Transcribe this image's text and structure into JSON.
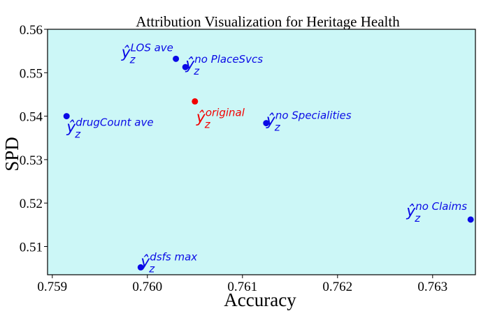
{
  "chart_data": {
    "type": "scatter",
    "title": "Attribution Visualization for Heritage Health",
    "xlabel": "Accuracy",
    "ylabel": "SPD",
    "xlim": [
      0.75895,
      0.76345
    ],
    "ylim": [
      0.5035,
      0.56
    ],
    "xticks": [
      0.759,
      0.76,
      0.761,
      0.762,
      0.763
    ],
    "xtick_labels": [
      "0.759",
      "0.760",
      "0.761",
      "0.762",
      "0.763"
    ],
    "yticks": [
      0.51,
      0.52,
      0.53,
      0.54,
      0.55,
      0.56
    ],
    "ytick_labels": [
      "0.51",
      "0.52",
      "0.53",
      "0.54",
      "0.55",
      "0.56"
    ],
    "grid": false,
    "legend": "none",
    "background_color": "#ccf7f7",
    "points": [
      {
        "label_main": "ŷ",
        "label_sup": "original",
        "label_sub": "z",
        "x": 0.7605,
        "y": 0.5434,
        "color": "#f20000"
      },
      {
        "label_main": "ŷ",
        "label_sup": "LOS ave",
        "label_sub": "z",
        "x": 0.7603,
        "y": 0.5532,
        "color": "#0a0ae6"
      },
      {
        "label_main": "ŷ",
        "label_sup": "no PlaceSvcs",
        "label_sub": "z",
        "x": 0.7604,
        "y": 0.5513,
        "color": "#0a0ae6"
      },
      {
        "label_main": "ŷ",
        "label_sup": "drugCount ave",
        "label_sub": "z",
        "x": 0.75915,
        "y": 0.54,
        "color": "#0a0ae6"
      },
      {
        "label_main": "ŷ",
        "label_sup": "no Specialities",
        "label_sub": "z",
        "x": 0.76125,
        "y": 0.5384,
        "color": "#0a0ae6"
      },
      {
        "label_main": "ŷ",
        "label_sup": "no Claims",
        "label_sub": "z",
        "x": 0.7634,
        "y": 0.5162,
        "color": "#0a0ae6"
      },
      {
        "label_main": "ŷ",
        "label_sup": "dsfs max",
        "label_sub": "z",
        "x": 0.75993,
        "y": 0.5052,
        "color": "#0a0ae6"
      }
    ]
  }
}
